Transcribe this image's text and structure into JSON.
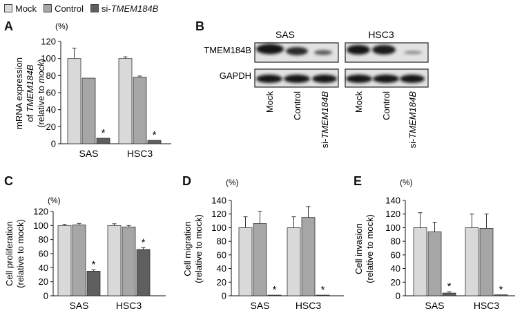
{
  "legend": {
    "items": [
      {
        "label": "Mock",
        "color": "#d9d9d9"
      },
      {
        "label": "Control",
        "color": "#a6a6a6"
      },
      {
        "prefix": "si-",
        "gene": "TMEM184B",
        "color": "#5f5f5f"
      }
    ]
  },
  "panels": {
    "A": {
      "letter": "A"
    },
    "B": {
      "letter": "B"
    },
    "C": {
      "letter": "C"
    },
    "D": {
      "letter": "D"
    },
    "E": {
      "letter": "E"
    }
  },
  "blot": {
    "cell_lines": [
      "SAS",
      "HSC3"
    ],
    "rows": [
      "TMEM184B",
      "GAPDH"
    ],
    "lanes": [
      {
        "label": "Mock"
      },
      {
        "label": "Control"
      },
      {
        "prefix": "si-",
        "gene": "TMEM184B"
      }
    ]
  },
  "chart_data": [
    {
      "panel": "A",
      "type": "bar",
      "unit_label": "(%)",
      "ylabel_lines": [
        {
          "text": "mRNA expression"
        },
        {
          "text_prefix": "of ",
          "italic": "TMEM184B"
        },
        {
          "text_prefix": "(relative to ",
          "italic": "mock",
          "text_suffix": ")"
        }
      ],
      "ylim": [
        0,
        120
      ],
      "yticks": [
        0,
        20,
        40,
        60,
        80,
        100,
        120
      ],
      "categories": [
        "SAS",
        "HSC3"
      ],
      "series": [
        {
          "values": [
            100,
            100
          ],
          "errors": [
            12,
            2
          ],
          "color": "#d9d9d9"
        },
        {
          "values": [
            77,
            78
          ],
          "errors": [
            0,
            1.5
          ],
          "color": "#a6a6a6"
        },
        {
          "values": [
            6.5,
            4
          ],
          "errors": [
            0,
            0
          ],
          "color": "#5f5f5f"
        }
      ],
      "annotations": [
        {
          "category": 0,
          "series": 2,
          "text": "*"
        },
        {
          "category": 1,
          "series": 2,
          "text": "*"
        }
      ]
    },
    {
      "panel": "C",
      "type": "bar",
      "unit_label": "(%)",
      "ylabel_lines": [
        {
          "text": "Cell proliferation"
        },
        {
          "text": "(relative to mock)"
        }
      ],
      "ylim": [
        0,
        120
      ],
      "yticks": [
        0,
        20,
        40,
        60,
        80,
        100,
        120
      ],
      "categories": [
        "SAS",
        "HSC3"
      ],
      "series": [
        {
          "values": [
            100,
            100
          ],
          "errors": [
            1.5,
            2.5
          ],
          "color": "#d9d9d9"
        },
        {
          "values": [
            101,
            98
          ],
          "errors": [
            2,
            2
          ],
          "color": "#a6a6a6"
        },
        {
          "values": [
            35,
            66
          ],
          "errors": [
            2,
            2.5
          ],
          "color": "#5f5f5f"
        }
      ],
      "annotations": [
        {
          "category": 0,
          "series": 2,
          "text": "*"
        },
        {
          "category": 1,
          "series": 2,
          "text": "*"
        }
      ]
    },
    {
      "panel": "D",
      "type": "bar",
      "unit_label": "(%)",
      "ylabel_lines": [
        {
          "text": "Cell migration"
        },
        {
          "text": "(relative to mock)"
        }
      ],
      "ylim": [
        0,
        140
      ],
      "yticks": [
        0,
        20,
        40,
        60,
        80,
        100,
        120,
        140
      ],
      "categories": [
        "SAS",
        "HSC3"
      ],
      "series": [
        {
          "values": [
            100,
            100
          ],
          "errors": [
            16,
            16
          ],
          "color": "#d9d9d9"
        },
        {
          "values": [
            106,
            115
          ],
          "errors": [
            18,
            16
          ],
          "color": "#a6a6a6"
        },
        {
          "values": [
            1,
            1
          ],
          "errors": [
            0,
            0
          ],
          "color": "#5f5f5f"
        }
      ],
      "annotations": [
        {
          "category": 0,
          "series": 2,
          "text": "*"
        },
        {
          "category": 1,
          "series": 2,
          "text": "*"
        }
      ]
    },
    {
      "panel": "E",
      "type": "bar",
      "unit_label": "(%)",
      "ylabel_lines": [
        {
          "text": "Cell invasion"
        },
        {
          "text": "(relative to mock)"
        }
      ],
      "ylim": [
        0,
        140
      ],
      "yticks": [
        0,
        20,
        40,
        60,
        80,
        100,
        120,
        140
      ],
      "categories": [
        "SAS",
        "HSC3"
      ],
      "series": [
        {
          "values": [
            100,
            100
          ],
          "errors": [
            22,
            20
          ],
          "color": "#d9d9d9"
        },
        {
          "values": [
            94,
            99
          ],
          "errors": [
            14,
            21
          ],
          "color": "#a6a6a6"
        },
        {
          "values": [
            4,
            1.5
          ],
          "errors": [
            2,
            0
          ],
          "color": "#5f5f5f"
        }
      ],
      "annotations": [
        {
          "category": 0,
          "series": 2,
          "text": "*"
        },
        {
          "category": 1,
          "series": 2,
          "text": "*"
        }
      ]
    }
  ]
}
